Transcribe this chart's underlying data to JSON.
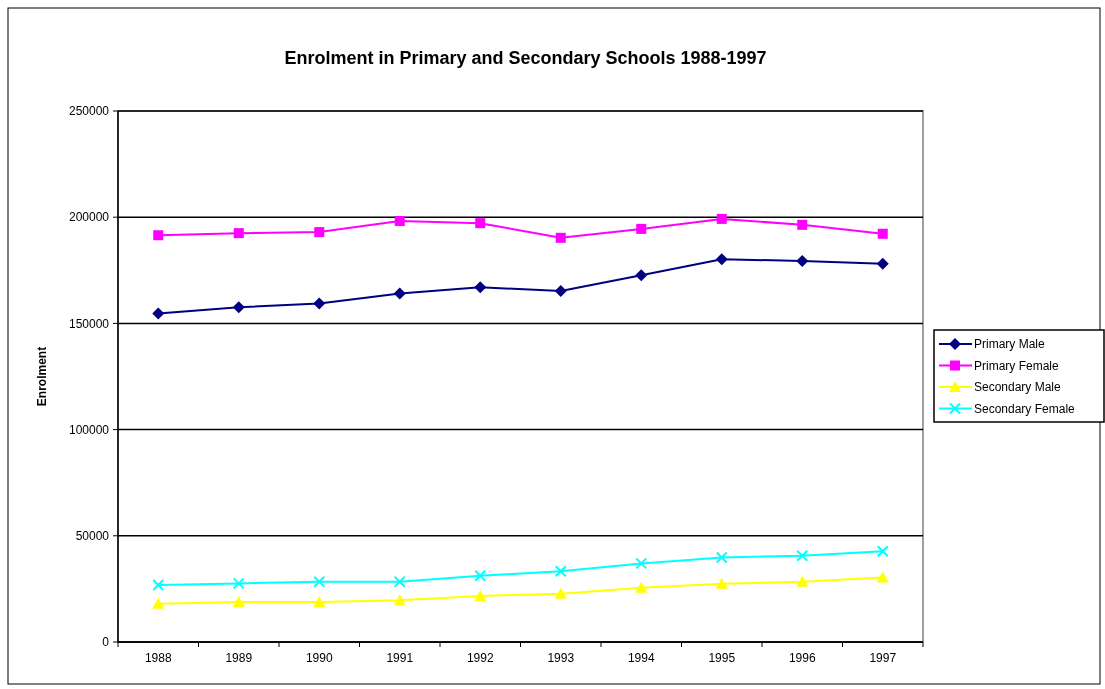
{
  "chart_data": {
    "type": "line",
    "title": "Enrolment in Primary and Secondary Schools 1988-1997",
    "ylabel": "Enrolment",
    "categories": [
      "1988",
      "1989",
      "1990",
      "1991",
      "1992",
      "1993",
      "1994",
      "1995",
      "1996",
      "1997"
    ],
    "series": [
      {
        "name": "Primary Male",
        "color": "#000080",
        "marker": "diamond",
        "values": [
          154700,
          157600,
          159400,
          164100,
          167000,
          165300,
          172700,
          180200,
          179400,
          178100
        ]
      },
      {
        "name": "Primary Female",
        "color": "#ff00ff",
        "marker": "square",
        "values": [
          191500,
          192500,
          193000,
          198200,
          197200,
          190300,
          194500,
          199200,
          196400,
          192200
        ]
      },
      {
        "name": "Secondary Male",
        "color": "#ffff00",
        "marker": "triangle",
        "values": [
          18000,
          18800,
          18800,
          19600,
          21700,
          22700,
          25500,
          27400,
          28400,
          30400
        ]
      },
      {
        "name": "Secondary Female",
        "color": "#00ffff",
        "marker": "cross",
        "values": [
          26800,
          27600,
          28400,
          28400,
          31200,
          33300,
          37000,
          39800,
          40600,
          42700
        ]
      }
    ],
    "ylim": [
      0,
      250000
    ],
    "yticks": [
      0,
      50000,
      100000,
      150000,
      200000,
      250000
    ],
    "grid": "y",
    "legend": "right",
    "line_style": "solid"
  }
}
